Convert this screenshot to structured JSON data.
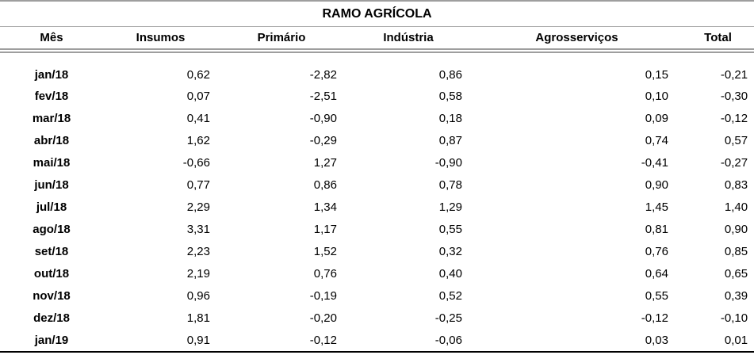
{
  "table": {
    "title": "RAMO AGRÍCOLA",
    "columns": {
      "mes": "Mês",
      "insumos": "Insumos",
      "primario": "Primário",
      "industria": "Indústria",
      "agrosservicos": "Agrosserviços",
      "total": "Total"
    },
    "rows": [
      {
        "mes": "jan/18",
        "insumos": "0,62",
        "primario": "-2,82",
        "industria": "0,86",
        "agrosservicos": "0,15",
        "total": "-0,21"
      },
      {
        "mes": "fev/18",
        "insumos": "0,07",
        "primario": "-2,51",
        "industria": "0,58",
        "agrosservicos": "0,10",
        "total": "-0,30"
      },
      {
        "mes": "mar/18",
        "insumos": "0,41",
        "primario": "-0,90",
        "industria": "0,18",
        "agrosservicos": "0,09",
        "total": "-0,12"
      },
      {
        "mes": "abr/18",
        "insumos": "1,62",
        "primario": "-0,29",
        "industria": "0,87",
        "agrosservicos": "0,74",
        "total": "0,57"
      },
      {
        "mes": "mai/18",
        "insumos": "-0,66",
        "primario": "1,27",
        "industria": "-0,90",
        "agrosservicos": "-0,41",
        "total": "-0,27"
      },
      {
        "mes": "jun/18",
        "insumos": "0,77",
        "primario": "0,86",
        "industria": "0,78",
        "agrosservicos": "0,90",
        "total": "0,83"
      },
      {
        "mes": "jul/18",
        "insumos": "2,29",
        "primario": "1,34",
        "industria": "1,29",
        "agrosservicos": "1,45",
        "total": "1,40"
      },
      {
        "mes": "ago/18",
        "insumos": "3,31",
        "primario": "1,17",
        "industria": "0,55",
        "agrosservicos": "0,81",
        "total": "0,90"
      },
      {
        "mes": "set/18",
        "insumos": "2,23",
        "primario": "1,52",
        "industria": "0,32",
        "agrosservicos": "0,76",
        "total": "0,85"
      },
      {
        "mes": "out/18",
        "insumos": "2,19",
        "primario": "0,76",
        "industria": "0,40",
        "agrosservicos": "0,64",
        "total": "0,65"
      },
      {
        "mes": "nov/18",
        "insumos": "0,96",
        "primario": "-0,19",
        "industria": "0,52",
        "agrosservicos": "0,55",
        "total": "0,39"
      },
      {
        "mes": "dez/18",
        "insumos": "1,81",
        "primario": "-0,20",
        "industria": "-0,25",
        "agrosservicos": "-0,12",
        "total": "-0,10"
      },
      {
        "mes": "jan/19",
        "insumos": "0,91",
        "primario": "-0,12",
        "industria": "-0,06",
        "agrosservicos": "0,03",
        "total": "0,01"
      }
    ]
  },
  "chart_data": {
    "type": "table",
    "title": "RAMO AGRÍCOLA",
    "categories": [
      "jan/18",
      "fev/18",
      "mar/18",
      "abr/18",
      "mai/18",
      "jun/18",
      "jul/18",
      "ago/18",
      "set/18",
      "out/18",
      "nov/18",
      "dez/18",
      "jan/19"
    ],
    "series": [
      {
        "name": "Insumos",
        "values": [
          0.62,
          0.07,
          0.41,
          1.62,
          -0.66,
          0.77,
          2.29,
          3.31,
          2.23,
          2.19,
          0.96,
          1.81,
          0.91
        ]
      },
      {
        "name": "Primário",
        "values": [
          -2.82,
          -2.51,
          -0.9,
          -0.29,
          1.27,
          0.86,
          1.34,
          1.17,
          1.52,
          0.76,
          -0.19,
          -0.2,
          -0.12
        ]
      },
      {
        "name": "Indústria",
        "values": [
          0.86,
          0.58,
          0.18,
          0.87,
          -0.9,
          0.78,
          1.29,
          0.55,
          0.32,
          0.4,
          0.52,
          -0.25,
          -0.06
        ]
      },
      {
        "name": "Agrosserviços",
        "values": [
          0.15,
          0.1,
          0.09,
          0.74,
          -0.41,
          0.9,
          1.45,
          0.81,
          0.76,
          0.64,
          0.55,
          -0.12,
          0.03
        ]
      },
      {
        "name": "Total",
        "values": [
          -0.21,
          -0.3,
          -0.12,
          0.57,
          -0.27,
          0.83,
          1.4,
          0.9,
          0.85,
          0.65,
          0.39,
          -0.1,
          0.01
        ]
      }
    ],
    "colors": {
      "text": "#000000",
      "rule_gray": "#9e9e9e",
      "rule_black": "#000000",
      "background": "#ffffff"
    }
  }
}
